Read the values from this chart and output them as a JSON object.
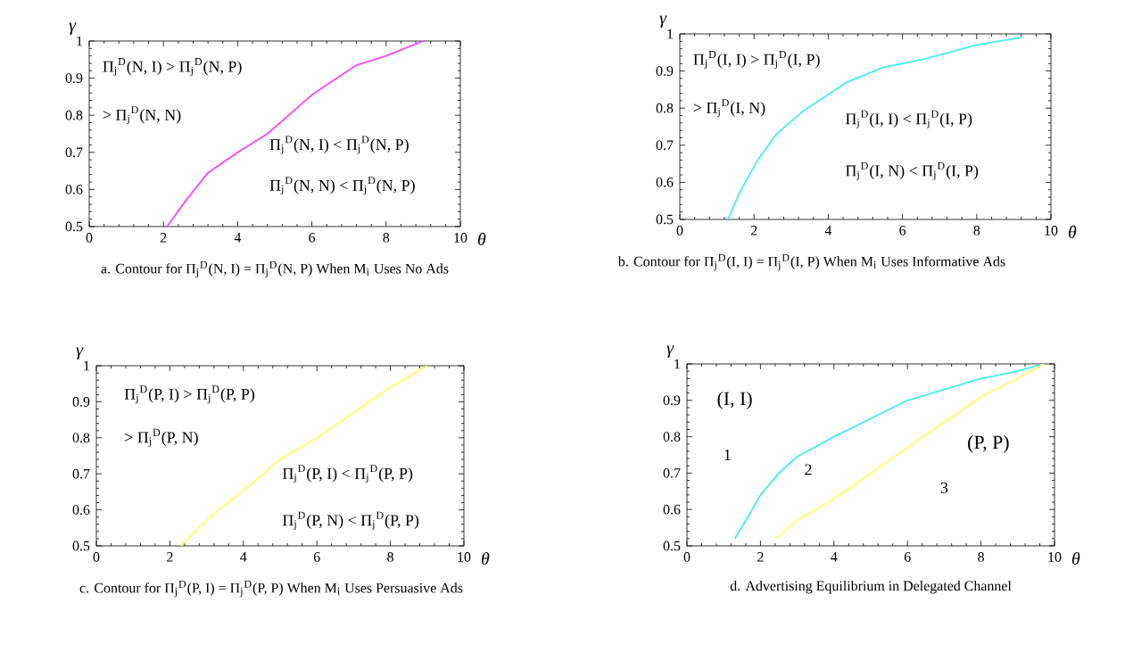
{
  "chart_data": [
    {
      "type": "line",
      "title": "a. Contour for Π$_{j}$$^{D}$(N, I) = Π$_{j}$$^{D}$(N, P)  When M$_{i}$ Uses No Ads",
      "xlabel": "θ",
      "ylabel": "γ",
      "marker": "none",
      "series": [
        {
          "color": "#ff44ff",
          "x": [
            2.1,
            2.6,
            3.2,
            4,
            4.8,
            6,
            7.2,
            8,
            9
          ],
          "values": [
            0.5,
            0.57,
            0.645,
            0.7,
            0.75,
            0.855,
            0.935,
            0.96,
            1.0
          ]
        }
      ],
      "xlim": [
        0,
        10
      ],
      "ylim": [
        0.5,
        1
      ],
      "xticks": [
        0,
        2,
        4,
        6,
        8,
        10
      ],
      "yticks": [
        0.5,
        0.6,
        0.7,
        0.8,
        0.9,
        1
      ],
      "annotations": [
        "Π$_{j}$$^{D}$(N, I) > Π$_{j}$$^{D}$(N, P)",
        "> Π$_{j}$$^{D}$(N, N)",
        "Π$_{j}$$^{D}$(N, I) < Π$_{j}$$^{D}$(N, P)",
        "Π$_{j}$$^{D}$(N, N) < Π$_{j}$$^{D}$(N, P)"
      ]
    },
    {
      "type": "line",
      "title": "b. Contour for Π$_{j}$$^{D}$(I, I) = Π$_{j}$$^{D}$(I, P)  When M$_{i}$ Uses Informative Ads",
      "xlabel": "θ",
      "ylabel": "γ",
      "marker": "none",
      "series": [
        {
          "color": "#44eeee",
          "x": [
            1.3,
            1.6,
            2.1,
            2.6,
            3.3,
            4.5,
            5.5,
            6.5,
            8,
            9.2
          ],
          "values": [
            0.5,
            0.57,
            0.66,
            0.73,
            0.79,
            0.87,
            0.91,
            0.93,
            0.97,
            0.99
          ]
        }
      ],
      "xlim": [
        0,
        10
      ],
      "ylim": [
        0.5,
        1
      ],
      "xticks": [
        0,
        2,
        4,
        6,
        8,
        10
      ],
      "yticks": [
        0.5,
        0.6,
        0.7,
        0.8,
        0.9,
        1
      ],
      "annotations": [
        "Π$_{j}$$^{D}$(I, I) > Π$_{j}$$^{D}$(I, P)",
        "> Π$_{j}$$^{D}$(I, N)",
        "Π$_{j}$$^{D}$(I, I) < Π$_{j}$$^{D}$(I, P)",
        "Π$_{j}$$^{D}$(I, N) < Π$_{j}$$^{D}$(I, P)"
      ]
    },
    {
      "type": "line",
      "title": "c. Contour for Π$_{j}$$^{D}$(P, I) = Π$_{j}$$^{D}$(P, P)  When M$_{i}$ Uses Persuasive Ads",
      "xlabel": "θ",
      "ylabel": "γ",
      "marker": "none",
      "series": [
        {
          "color": "#ffff66",
          "x": [
            2.3,
            3.2,
            4.2,
            5,
            6,
            7,
            8,
            9
          ],
          "values": [
            0.5,
            0.59,
            0.67,
            0.74,
            0.8,
            0.87,
            0.94,
            1.0
          ]
        }
      ],
      "xlim": [
        0,
        10
      ],
      "ylim": [
        0.5,
        1
      ],
      "xticks": [
        0,
        2,
        4,
        6,
        8,
        10
      ],
      "yticks": [
        0.5,
        0.6,
        0.7,
        0.8,
        0.9,
        1
      ],
      "annotations": [
        "Π$_{j}$$^{D}$(P, I) > Π$_{j}$$^{D}$(P, P)",
        "> Π$_{j}$$^{D}$(P, N)",
        "Π$_{j}$$^{D}$(P, I) < Π$_{j}$$^{D}$(P, P)",
        "Π$_{j}$$^{D}$(P, N) < Π$_{j}$$^{D}$(P, P)"
      ]
    },
    {
      "type": "line",
      "title": "d. Advertising Equilibrium in Delegated Channel",
      "xlabel": "θ",
      "ylabel": "γ",
      "marker": "none",
      "series": [
        {
          "color": "#44eeee",
          "x": [
            1.3,
            1.6,
            2,
            2.5,
            3,
            4,
            5,
            6,
            7,
            8,
            9,
            9.7
          ],
          "values": [
            0.52,
            0.57,
            0.64,
            0.7,
            0.745,
            0.8,
            0.85,
            0.9,
            0.93,
            0.96,
            0.98,
            1.0
          ]
        },
        {
          "color": "#ffff66",
          "x": [
            2.4,
            3,
            4,
            5,
            6,
            7,
            8,
            9,
            9.7
          ],
          "values": [
            0.52,
            0.57,
            0.63,
            0.7,
            0.77,
            0.84,
            0.91,
            0.96,
            1.0
          ]
        }
      ],
      "xlim": [
        0,
        10
      ],
      "ylim": [
        0.5,
        1
      ],
      "xticks": [
        0,
        2,
        4,
        6,
        8,
        10
      ],
      "yticks": [
        0.5,
        0.6,
        0.7,
        0.8,
        0.9,
        1
      ],
      "annotations": [
        "(I, I)",
        "1",
        "2",
        "(P, P)",
        "3"
      ]
    }
  ]
}
